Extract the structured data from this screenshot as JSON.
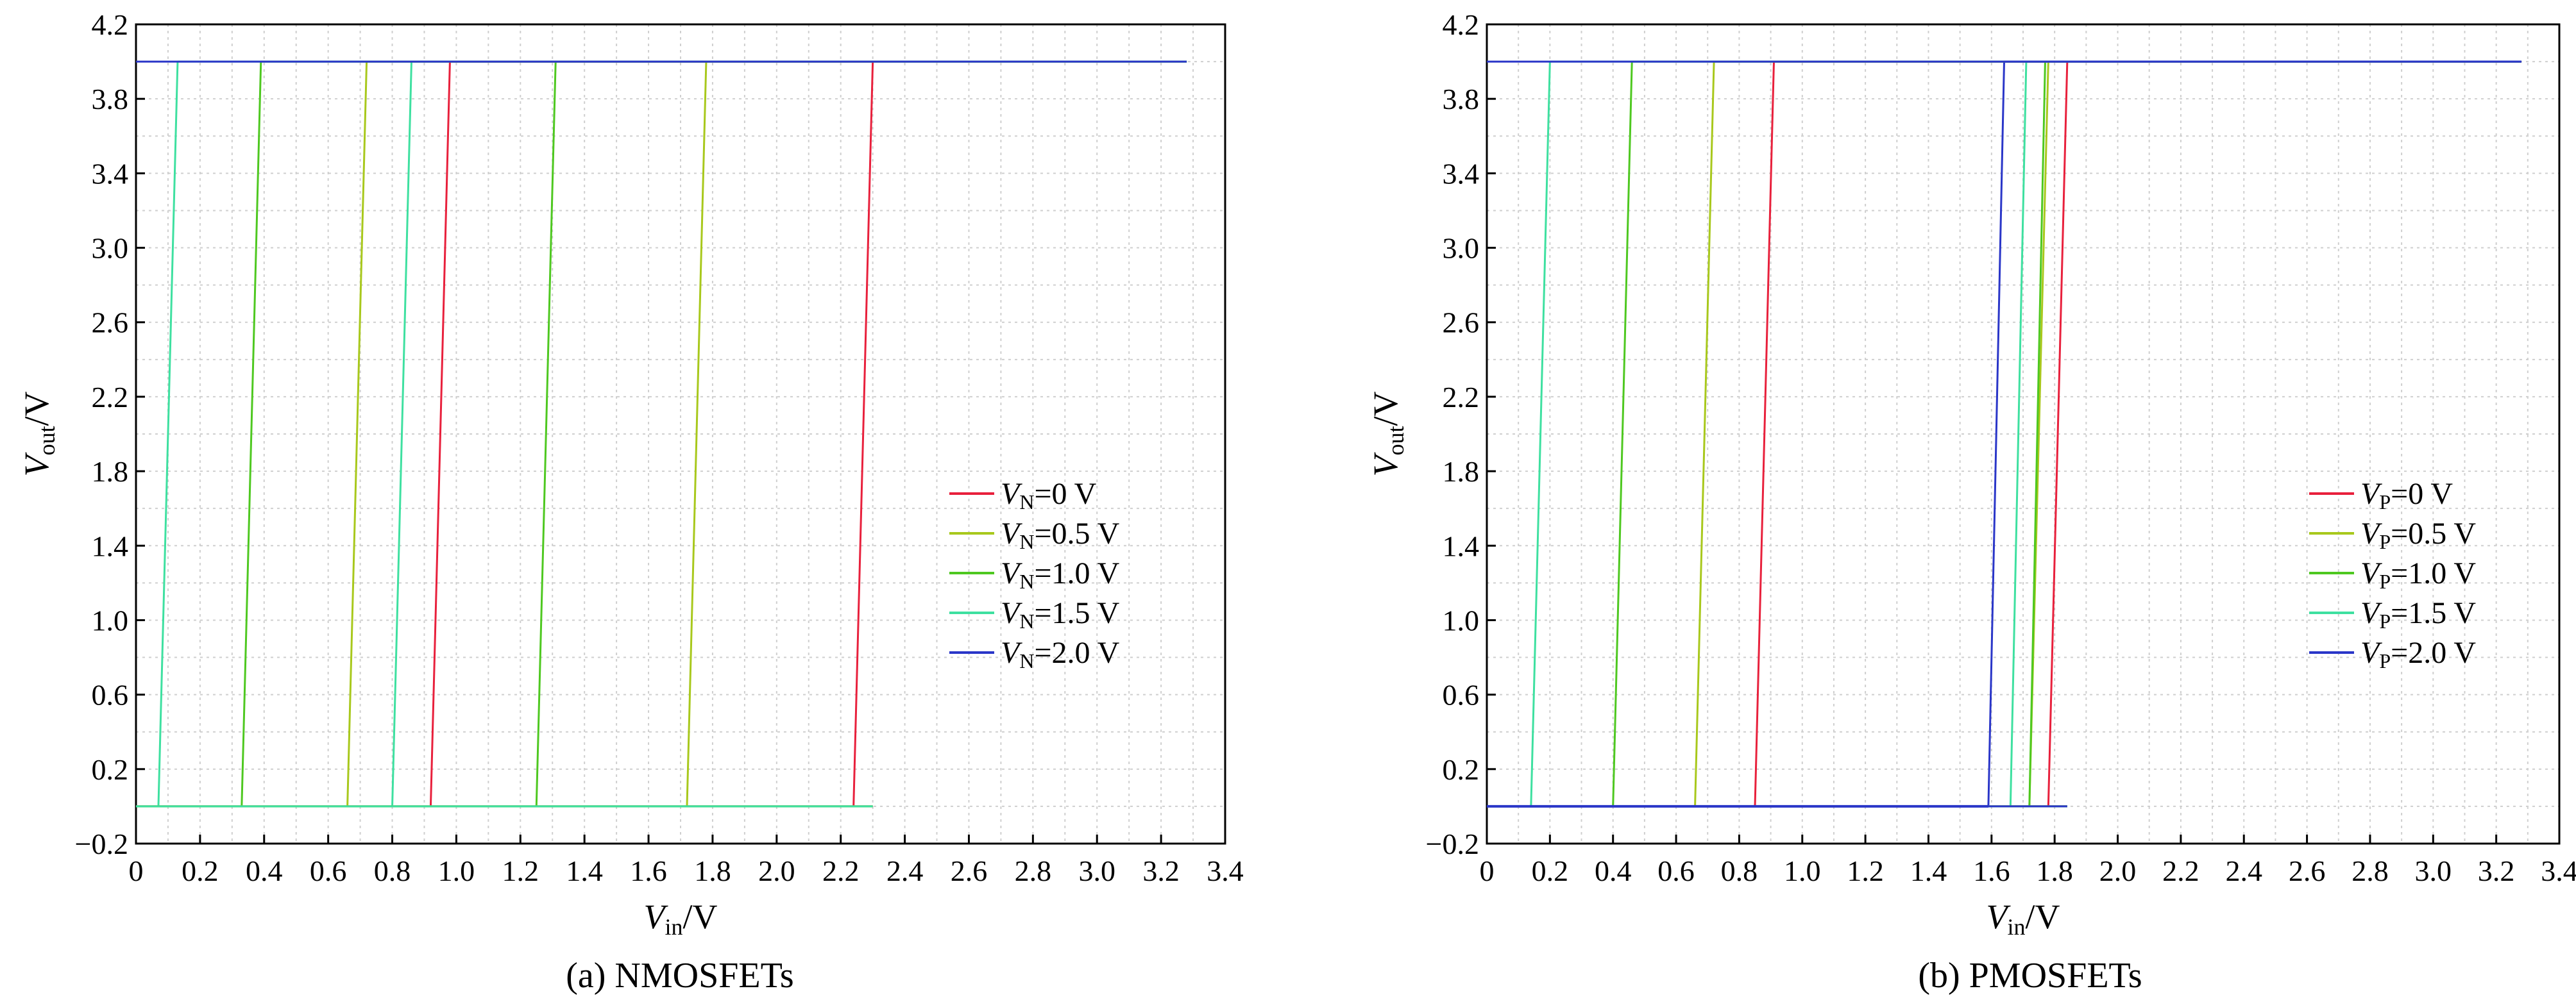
{
  "chart_data": [
    {
      "type": "line",
      "caption": "(a) NMOSFETs",
      "xlabel": {
        "main": "V",
        "sub": "in",
        "unit": "/V"
      },
      "ylabel": {
        "main": "V",
        "sub": "out",
        "unit": "/V"
      },
      "xlim": [
        0,
        3.4
      ],
      "ylim": [
        -0.2,
        4.2
      ],
      "xticks": [
        "0",
        "0.2",
        "0.4",
        "0.6",
        "0.8",
        "1.0",
        "1.2",
        "1.4",
        "1.6",
        "1.8",
        "2.0",
        "2.2",
        "2.4",
        "2.6",
        "2.8",
        "3.0",
        "3.2",
        "3.4"
      ],
      "yticks": [
        "-0.2",
        "0.2",
        "0.6",
        "1.0",
        "1.4",
        "1.8",
        "2.2",
        "2.6",
        "3.0",
        "3.4",
        "3.8",
        "4.2"
      ],
      "grid": true,
      "legend_position": "right",
      "series": [
        {
          "name": "0 V",
          "label_var": "V",
          "label_sub": "N",
          "label_rest": "=0 V",
          "color": "#e8203c",
          "x": [
            0,
            0.92,
            0.98,
            2.3
          ],
          "y": [
            0,
            0,
            4.0,
            4.0
          ]
        },
        {
          "name": "0.5 V",
          "label_var": "V",
          "label_sub": "N",
          "label_rest": "=0.5 V",
          "color": "#a8c81c",
          "x": [
            0,
            0.66,
            0.72,
            1.72,
            1.78,
            3.28
          ],
          "y": [
            0,
            0,
            4.0,
            4.0,
            4.0,
            4.0
          ]
        },
        {
          "name": "1.0 V",
          "label_var": "V",
          "label_sub": "N",
          "label_rest": "=1.0 V",
          "color": "#4ec820",
          "x": [
            0,
            0.33,
            0.39,
            1.25,
            1.31,
            3.28
          ],
          "y": [
            0,
            0,
            4.0,
            4.0,
            4.0,
            4.0
          ]
        },
        {
          "name": "1.5 V",
          "label_var": "V",
          "label_sub": "N",
          "label_rest": "=1.5 V",
          "color": "#3ee0a0",
          "x": [
            0,
            0.07,
            0.13,
            0.8,
            0.86,
            3.28
          ],
          "y": [
            0,
            0,
            4.0,
            4.0,
            4.0,
            4.0
          ]
        },
        {
          "name": "2.0 V",
          "label_var": "V",
          "label_sub": "N",
          "label_rest": "=2.0 V",
          "color": "#2a36c8",
          "x": [
            0,
            3.28
          ],
          "y": [
            4.0,
            4.0
          ]
        }
      ],
      "steps": [
        {
          "color": "#e8203c",
          "x": [
            0.92,
            0.98,
            2.24,
            2.3
          ],
          "y": [
            0,
            4.0,
            0,
            4.0
          ]
        },
        {
          "color": "#a8c81c",
          "x": [
            0.66,
            0.72,
            1.72,
            1.78
          ],
          "y": [
            0,
            4.0,
            0,
            4.0
          ]
        },
        {
          "color": "#4ec820",
          "x": [
            0.33,
            0.39,
            1.25,
            1.31
          ],
          "y": [
            0,
            4.0,
            0,
            4.0
          ]
        },
        {
          "color": "#3ee0a0",
          "x": [
            0.07,
            0.13,
            0.8,
            0.86
          ],
          "y": [
            0,
            4.0,
            0,
            4.0
          ]
        }
      ]
    },
    {
      "type": "line",
      "caption": "(b) PMOSFETs",
      "xlabel": {
        "main": "V",
        "sub": "in",
        "unit": "/V"
      },
      "ylabel": {
        "main": "V",
        "sub": "out",
        "unit": "/V"
      },
      "xlim": [
        0,
        3.4
      ],
      "ylim": [
        -0.2,
        4.2
      ],
      "xticks": [
        "0",
        "0.2",
        "0.4",
        "0.6",
        "0.8",
        "1.0",
        "1.2",
        "1.4",
        "1.6",
        "1.8",
        "2.0",
        "2.2",
        "2.4",
        "2.6",
        "2.8",
        "3.0",
        "3.2",
        "3.4"
      ],
      "yticks": [
        "-0.2",
        "0.2",
        "0.6",
        "1.0",
        "1.4",
        "1.8",
        "2.2",
        "2.6",
        "3.0",
        "3.4",
        "3.8",
        "4.2"
      ],
      "grid": true,
      "legend_position": "right",
      "series": [
        {
          "name": "0 V",
          "label_var": "V",
          "label_sub": "P",
          "label_rest": "=0 V",
          "color": "#e8203c",
          "x": [
            0,
            0.85,
            0.91,
            1.78,
            1.84,
            3.28
          ],
          "y": [
            0,
            0,
            4.0,
            4.0,
            4.0,
            4.0
          ]
        },
        {
          "name": "0.5 V",
          "label_var": "V",
          "label_sub": "P",
          "label_rest": "=0.5 V",
          "color": "#a8c81c",
          "x": [
            0,
            0.66,
            0.72,
            1.72,
            1.78,
            3.28
          ],
          "y": [
            0,
            0,
            4.0,
            4.0,
            4.0,
            4.0
          ]
        },
        {
          "name": "1.0 V",
          "label_var": "V",
          "label_sub": "P",
          "label_rest": "=1.0 V",
          "color": "#4ec820",
          "x": [
            0,
            0.4,
            0.46,
            1.72,
            1.77,
            3.28
          ],
          "y": [
            0,
            0,
            4.0,
            4.0,
            4.0,
            4.0
          ]
        },
        {
          "name": "1.5 V",
          "label_var": "V",
          "label_sub": "P",
          "label_rest": "=1.5 V",
          "color": "#3ee0a0",
          "x": [
            0,
            0.14,
            0.2,
            1.66,
            1.71,
            3.28
          ],
          "y": [
            0,
            0,
            4.0,
            4.0,
            4.0,
            4.0
          ]
        },
        {
          "name": "2.0 V",
          "label_var": "V",
          "label_sub": "P",
          "label_rest": "=2.0 V",
          "color": "#2a36c8",
          "x": [
            0,
            1.59,
            1.64,
            3.28
          ],
          "y": [
            0,
            0,
            4.0,
            4.0
          ]
        }
      ],
      "steps": [
        {
          "color": "#e8203c",
          "x": [
            0.85,
            0.91,
            1.78,
            1.84
          ],
          "y": [
            0,
            4.0,
            0,
            4.0
          ]
        },
        {
          "color": "#a8c81c",
          "x": [
            0.66,
            0.72,
            1.72,
            1.78
          ],
          "y": [
            0,
            4.0,
            0,
            4.0
          ]
        },
        {
          "color": "#4ec820",
          "x": [
            0.4,
            0.46,
            1.72,
            1.77
          ],
          "y": [
            0,
            4.0,
            0,
            4.0
          ]
        },
        {
          "color": "#3ee0a0",
          "x": [
            0.14,
            0.2,
            1.66,
            1.71
          ],
          "y": [
            0,
            4.0,
            0,
            4.0
          ]
        },
        {
          "color": "#2a36c8",
          "x": [
            1.59,
            1.64
          ],
          "y": [
            0,
            4.0
          ]
        }
      ],
      "blue_baseline": {
        "color": "#2a36c8",
        "x": [
          0,
          1.59
        ],
        "y": [
          0,
          0
        ]
      },
      "blue_top": {
        "color": "#2a36c8",
        "x": [
          0,
          3.28
        ],
        "y": [
          4.0,
          4.0
        ]
      }
    }
  ]
}
